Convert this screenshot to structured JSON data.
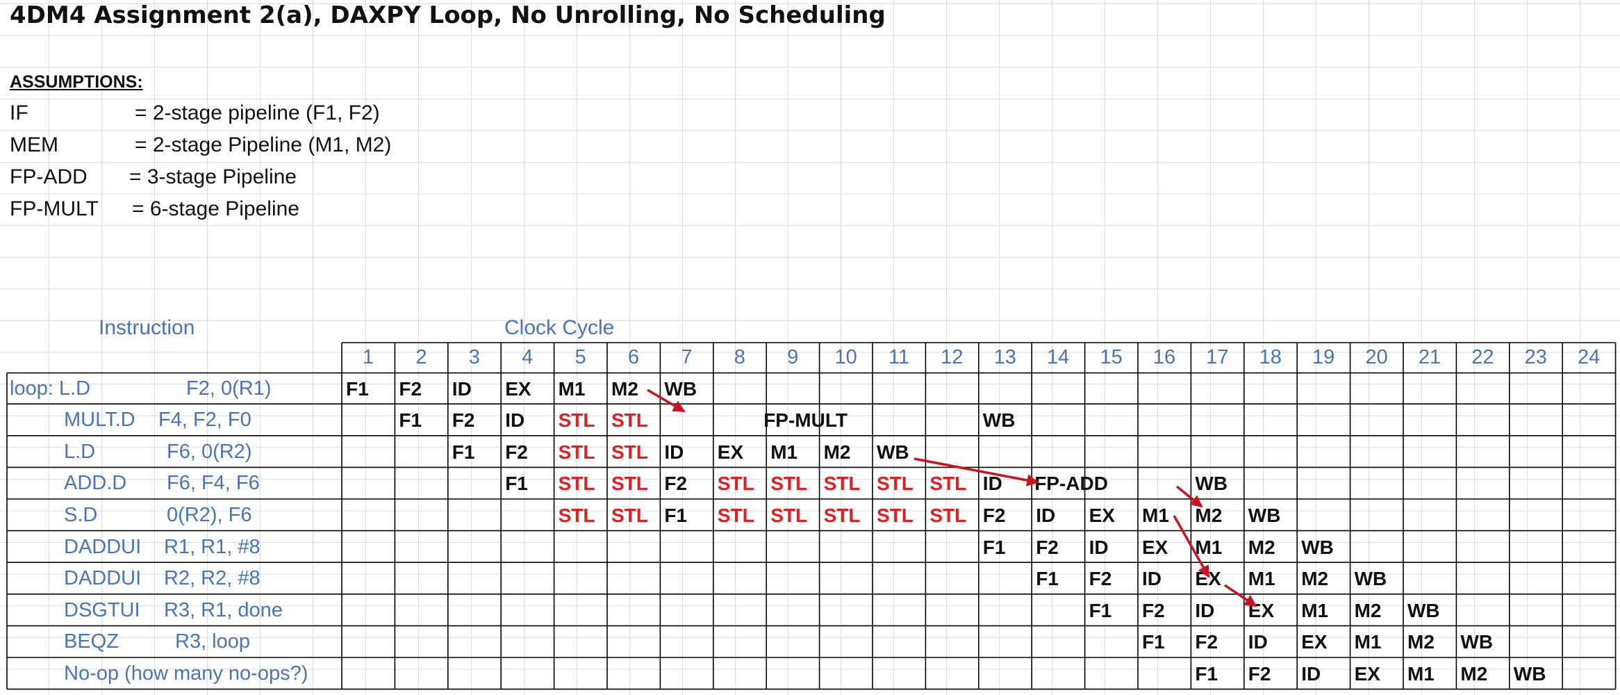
{
  "title": "4DM4 Assignment 2(a), DAXPY Loop, No Unrolling, No Scheduling",
  "assumptions": {
    "heading": "ASSUMPTIONS:",
    "items": [
      {
        "key": "IF",
        "value": "= 2-stage pipeline (F1, F2)"
      },
      {
        "key": "MEM",
        "value": "= 2-stage Pipeline (M1, M2)"
      },
      {
        "key": "FP-ADD",
        "value": "= 3-stage Pipeline"
      },
      {
        "key": "FP-MULT",
        "value": "= 6-stage Pipeline"
      }
    ]
  },
  "headers": {
    "instruction": "Instruction",
    "clock": "Clock Cycle"
  },
  "cycles": [
    "1",
    "2",
    "3",
    "4",
    "5",
    "6",
    "7",
    "8",
    "9",
    "10",
    "11",
    "12",
    "13",
    "14",
    "15",
    "16",
    "17",
    "18",
    "19",
    "20",
    "21",
    "22",
    "23",
    "24"
  ],
  "instructions": [
    {
      "op": "loop:  L.D",
      "args": "F2, 0(R1)",
      "cells": [
        [
          1,
          "F1"
        ],
        [
          2,
          "F2"
        ],
        [
          3,
          "ID"
        ],
        [
          4,
          "EX"
        ],
        [
          5,
          "M1"
        ],
        [
          6,
          "M2"
        ],
        [
          7,
          "WB"
        ]
      ]
    },
    {
      "op": "MULT.D",
      "args": "F4, F2, F0",
      "cells": [
        [
          2,
          "F1"
        ],
        [
          3,
          "F2"
        ],
        [
          4,
          "ID"
        ],
        [
          5,
          "STL"
        ],
        [
          6,
          "STL"
        ],
        [
          9,
          "FP-MULT"
        ],
        [
          13,
          "WB"
        ]
      ]
    },
    {
      "op": "L.D",
      "args": "F6, 0(R2)",
      "cells": [
        [
          3,
          "F1"
        ],
        [
          4,
          "F2"
        ],
        [
          5,
          "STL"
        ],
        [
          6,
          "STL"
        ],
        [
          7,
          "ID"
        ],
        [
          8,
          "EX"
        ],
        [
          9,
          "M1"
        ],
        [
          10,
          "M2"
        ],
        [
          11,
          "WB"
        ]
      ]
    },
    {
      "op": "ADD.D",
      "args": "F6, F4, F6",
      "cells": [
        [
          4,
          "F1"
        ],
        [
          5,
          "STL"
        ],
        [
          6,
          "STL"
        ],
        [
          7,
          "F2"
        ],
        [
          8,
          "STL"
        ],
        [
          9,
          "STL"
        ],
        [
          10,
          "STL"
        ],
        [
          11,
          "STL"
        ],
        [
          12,
          "STL"
        ],
        [
          13,
          "ID"
        ],
        [
          14,
          "FP-ADD"
        ],
        [
          17,
          "WB"
        ]
      ]
    },
    {
      "op": "S.D",
      "args": "0(R2), F6",
      "cells": [
        [
          5,
          "STL"
        ],
        [
          6,
          "STL"
        ],
        [
          7,
          "F1"
        ],
        [
          8,
          "STL"
        ],
        [
          9,
          "STL"
        ],
        [
          10,
          "STL"
        ],
        [
          11,
          "STL"
        ],
        [
          12,
          "STL"
        ],
        [
          13,
          "F2"
        ],
        [
          14,
          "ID"
        ],
        [
          15,
          "EX"
        ],
        [
          16,
          "M1"
        ],
        [
          17,
          "M2"
        ],
        [
          18,
          "WB"
        ]
      ]
    },
    {
      "op": "DADDUI",
      "args": "R1, R1, #8",
      "cells": [
        [
          13,
          "F1"
        ],
        [
          14,
          "F2"
        ],
        [
          15,
          "ID"
        ],
        [
          16,
          "EX"
        ],
        [
          17,
          "M1"
        ],
        [
          18,
          "M2"
        ],
        [
          19,
          "WB"
        ]
      ]
    },
    {
      "op": "DADDUI",
      "args": "R2, R2, #8",
      "cells": [
        [
          14,
          "F1"
        ],
        [
          15,
          "F2"
        ],
        [
          16,
          "ID"
        ],
        [
          17,
          "EX"
        ],
        [
          18,
          "M1"
        ],
        [
          19,
          "M2"
        ],
        [
          20,
          "WB"
        ]
      ]
    },
    {
      "op": "DSGTUI",
      "args": "R3, R1, done",
      "cells": [
        [
          15,
          "F1"
        ],
        [
          16,
          "F2"
        ],
        [
          17,
          "ID"
        ],
        [
          18,
          "EX"
        ],
        [
          19,
          "M1"
        ],
        [
          20,
          "M2"
        ],
        [
          21,
          "WB"
        ]
      ]
    },
    {
      "op": "BEQZ",
      "args": "R3, loop",
      "cells": [
        [
          16,
          "F1"
        ],
        [
          17,
          "F2"
        ],
        [
          18,
          "ID"
        ],
        [
          19,
          "EX"
        ],
        [
          20,
          "M1"
        ],
        [
          21,
          "M2"
        ],
        [
          22,
          "WB"
        ]
      ]
    },
    {
      "op": "No-op (how many  no-ops?)",
      "args": "",
      "cells": [
        [
          17,
          "F1"
        ],
        [
          18,
          "F2"
        ],
        [
          19,
          "ID"
        ],
        [
          20,
          "EX"
        ],
        [
          21,
          "M1"
        ],
        [
          22,
          "M2"
        ],
        [
          23,
          "WB"
        ]
      ]
    }
  ],
  "colors": {
    "stall": "#e02020",
    "label": "#4a74b8",
    "arrow": "#c8141e",
    "grid": "#000000"
  }
}
